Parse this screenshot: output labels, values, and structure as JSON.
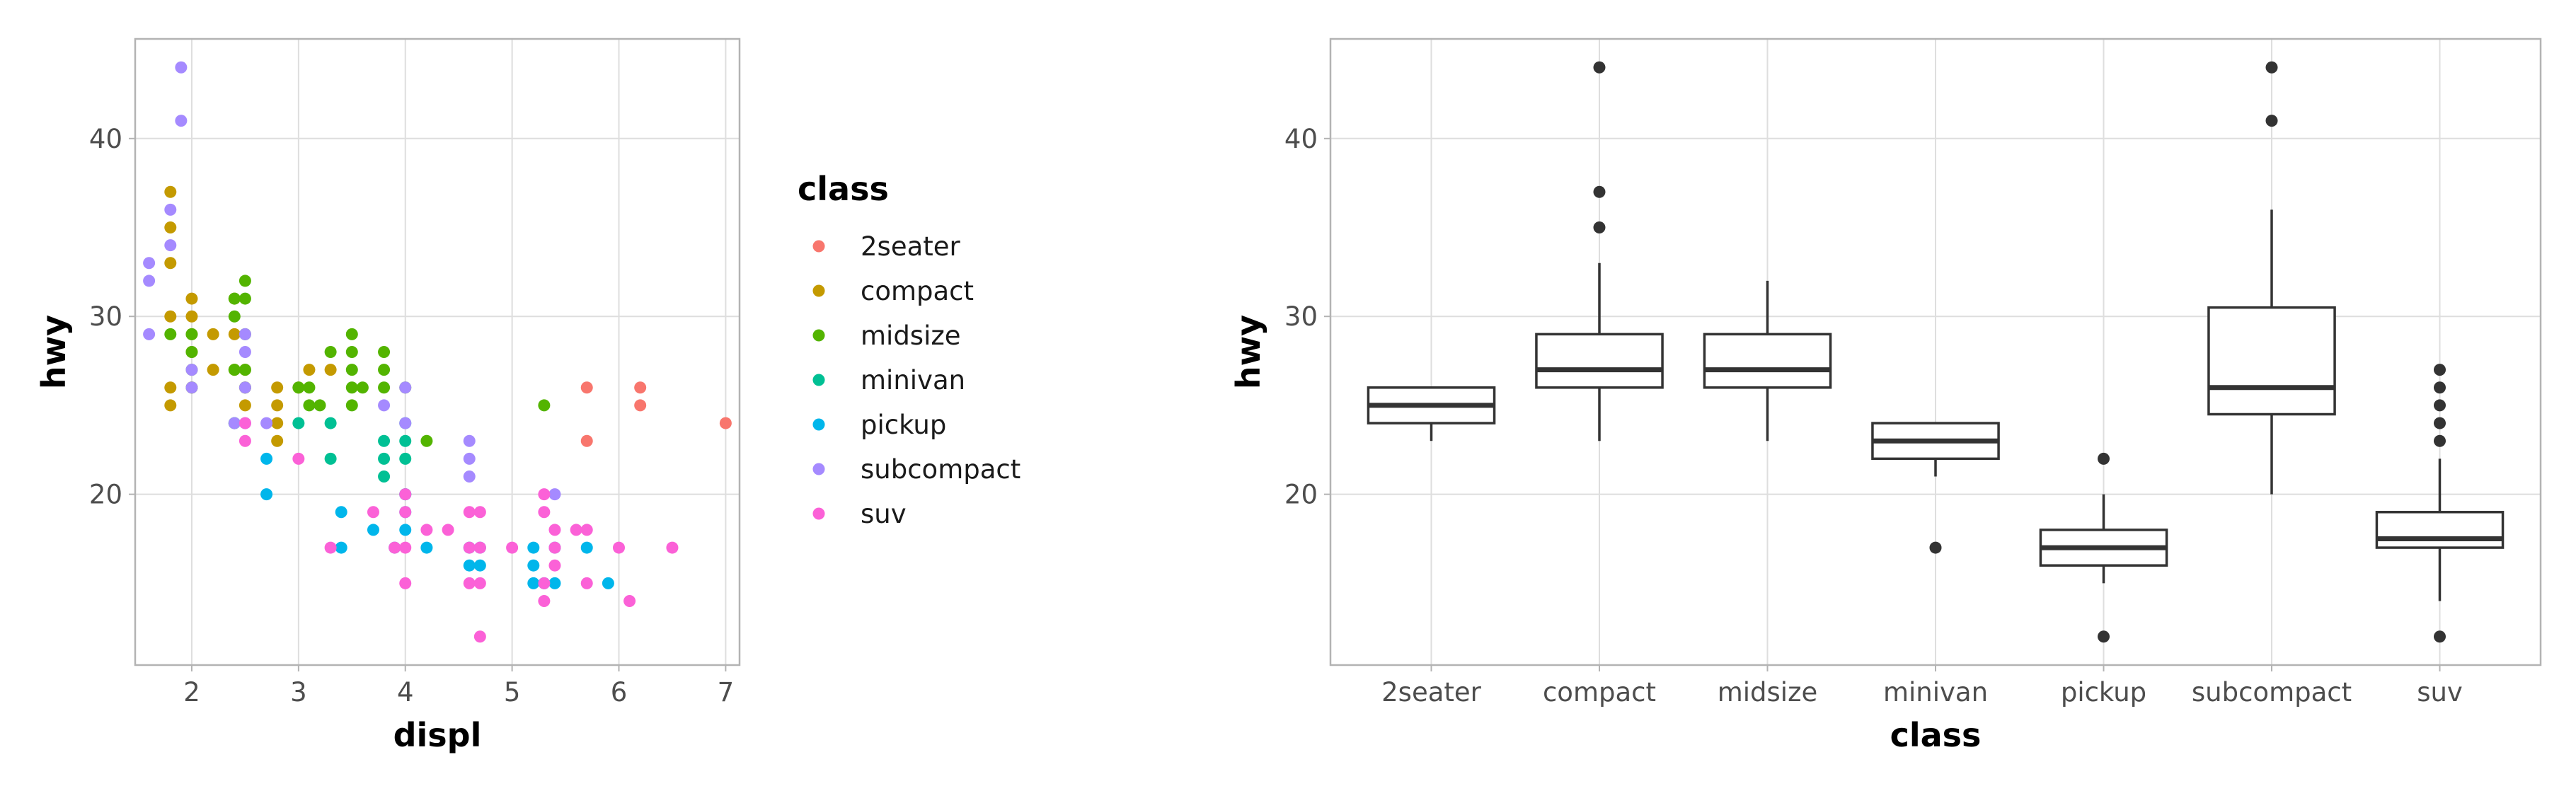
{
  "chart_data": [
    {
      "type": "scatter",
      "xlabel": "displ",
      "ylabel": "hwy",
      "xlim": [
        1.47,
        7.13
      ],
      "ylim": [
        10.4,
        45.6
      ],
      "x_ticks": [
        2,
        3,
        4,
        5,
        6,
        7
      ],
      "y_ticks": [
        20,
        30,
        40
      ],
      "grid": true,
      "legend": {
        "title": "class",
        "placement": "right",
        "entries": [
          {
            "label": "2seater",
            "color": "#F8766D"
          },
          {
            "label": "compact",
            "color": "#C49A00"
          },
          {
            "label": "midsize",
            "color": "#53B400"
          },
          {
            "label": "minivan",
            "color": "#00C094"
          },
          {
            "label": "pickup",
            "color": "#00B6EB"
          },
          {
            "label": "subcompact",
            "color": "#A58AFF"
          },
          {
            "label": "suv",
            "color": "#FB61D7"
          }
        ]
      },
      "series": [
        {
          "name": "2seater",
          "points": [
            [
              5.7,
              26
            ],
            [
              5.7,
              23
            ],
            [
              6.2,
              26
            ],
            [
              6.2,
              25
            ],
            [
              7.0,
              24
            ]
          ]
        },
        {
          "name": "compact",
          "points": [
            [
              1.8,
              37
            ],
            [
              1.8,
              35
            ],
            [
              1.8,
              33
            ],
            [
              1.8,
              30
            ],
            [
              1.8,
              26
            ],
            [
              1.8,
              25
            ],
            [
              2.0,
              31
            ],
            [
              2.0,
              30
            ],
            [
              2.0,
              29
            ],
            [
              2.0,
              28
            ],
            [
              2.0,
              26
            ],
            [
              2.2,
              29
            ],
            [
              2.2,
              27
            ],
            [
              2.4,
              31
            ],
            [
              2.4,
              29
            ],
            [
              2.4,
              27
            ],
            [
              2.5,
              27
            ],
            [
              2.5,
              26
            ],
            [
              2.5,
              25
            ],
            [
              2.8,
              26
            ],
            [
              2.8,
              25
            ],
            [
              2.8,
              24
            ],
            [
              2.8,
              23
            ],
            [
              3.0,
              26
            ],
            [
              3.1,
              27
            ],
            [
              3.3,
              27
            ]
          ]
        },
        {
          "name": "midsize",
          "points": [
            [
              1.8,
              29
            ],
            [
              2.0,
              29
            ],
            [
              2.0,
              28
            ],
            [
              2.0,
              27
            ],
            [
              2.0,
              26
            ],
            [
              2.4,
              31
            ],
            [
              2.4,
              30
            ],
            [
              2.4,
              27
            ],
            [
              2.4,
              24
            ],
            [
              2.5,
              32
            ],
            [
              2.5,
              31
            ],
            [
              2.5,
              29
            ],
            [
              2.5,
              27
            ],
            [
              2.5,
              26
            ],
            [
              3.0,
              26
            ],
            [
              3.1,
              26
            ],
            [
              3.1,
              25
            ],
            [
              3.2,
              25
            ],
            [
              3.3,
              28
            ],
            [
              3.5,
              29
            ],
            [
              3.5,
              28
            ],
            [
              3.5,
              27
            ],
            [
              3.5,
              26
            ],
            [
              3.5,
              25
            ],
            [
              3.6,
              26
            ],
            [
              3.8,
              28
            ],
            [
              3.8,
              27
            ],
            [
              3.8,
              26
            ],
            [
              4.0,
              26
            ],
            [
              4.2,
              23
            ],
            [
              5.3,
              25
            ]
          ]
        },
        {
          "name": "minivan",
          "points": [
            [
              2.4,
              24
            ],
            [
              3.0,
              24
            ],
            [
              3.3,
              24
            ],
            [
              3.3,
              22
            ],
            [
              3.8,
              23
            ],
            [
              3.8,
              22
            ],
            [
              3.8,
              21
            ],
            [
              4.0,
              24
            ],
            [
              4.0,
              23
            ],
            [
              4.0,
              22
            ],
            [
              4.0,
              20
            ]
          ]
        },
        {
          "name": "pickup",
          "points": [
            [
              2.7,
              22
            ],
            [
              2.7,
              20
            ],
            [
              3.4,
              19
            ],
            [
              3.4,
              17
            ],
            [
              3.7,
              18
            ],
            [
              3.9,
              17
            ],
            [
              4.0,
              20
            ],
            [
              4.0,
              19
            ],
            [
              4.0,
              18
            ],
            [
              4.2,
              17
            ],
            [
              4.6,
              17
            ],
            [
              4.6,
              16
            ],
            [
              4.7,
              17
            ],
            [
              4.7,
              16
            ],
            [
              5.2,
              17
            ],
            [
              5.2,
              16
            ],
            [
              5.2,
              15
            ],
            [
              5.3,
              15
            ],
            [
              5.4,
              17
            ],
            [
              5.4,
              15
            ],
            [
              5.7,
              17
            ],
            [
              5.9,
              15
            ]
          ]
        },
        {
          "name": "subcompact",
          "points": [
            [
              1.6,
              33
            ],
            [
              1.6,
              32
            ],
            [
              1.6,
              29
            ],
            [
              1.8,
              34
            ],
            [
              1.8,
              36
            ],
            [
              1.9,
              44
            ],
            [
              1.9,
              41
            ],
            [
              2.0,
              27
            ],
            [
              2.0,
              26
            ],
            [
              2.4,
              24
            ],
            [
              2.5,
              29
            ],
            [
              2.5,
              28
            ],
            [
              2.5,
              26
            ],
            [
              2.5,
              24
            ],
            [
              2.7,
              24
            ],
            [
              3.8,
              25
            ],
            [
              4.0,
              26
            ],
            [
              4.0,
              24
            ],
            [
              4.6,
              23
            ],
            [
              4.6,
              22
            ],
            [
              4.6,
              21
            ],
            [
              5.4,
              20
            ]
          ]
        },
        {
          "name": "suv",
          "points": [
            [
              2.5,
              24
            ],
            [
              2.5,
              23
            ],
            [
              3.0,
              22
            ],
            [
              3.3,
              17
            ],
            [
              3.7,
              19
            ],
            [
              3.9,
              17
            ],
            [
              4.0,
              20
            ],
            [
              4.0,
              19
            ],
            [
              4.0,
              17
            ],
            [
              4.0,
              15
            ],
            [
              4.2,
              18
            ],
            [
              4.4,
              18
            ],
            [
              4.6,
              19
            ],
            [
              4.6,
              17
            ],
            [
              4.6,
              15
            ],
            [
              4.7,
              19
            ],
            [
              4.7,
              17
            ],
            [
              4.7,
              15
            ],
            [
              4.7,
              12
            ],
            [
              5.0,
              17
            ],
            [
              5.3,
              20
            ],
            [
              5.3,
              19
            ],
            [
              5.3,
              15
            ],
            [
              5.3,
              14
            ],
            [
              5.4,
              18
            ],
            [
              5.4,
              17
            ],
            [
              5.4,
              16
            ],
            [
              5.6,
              18
            ],
            [
              5.7,
              18
            ],
            [
              5.7,
              15
            ],
            [
              6.0,
              17
            ],
            [
              6.1,
              14
            ],
            [
              6.5,
              17
            ]
          ]
        }
      ]
    },
    {
      "type": "box",
      "xlabel": "class",
      "ylabel": "hwy",
      "ylim": [
        10.4,
        45.6
      ],
      "y_ticks": [
        20,
        30,
        40
      ],
      "grid": true,
      "categories": [
        "2seater",
        "compact",
        "midsize",
        "minivan",
        "pickup",
        "subcompact",
        "suv"
      ],
      "boxes": [
        {
          "category": "2seater",
          "lower_whisker": 23,
          "q1": 24,
          "median": 25,
          "q3": 26,
          "upper_whisker": 26,
          "outliers": []
        },
        {
          "category": "compact",
          "lower_whisker": 23,
          "q1": 26,
          "median": 27,
          "q3": 29,
          "upper_whisker": 33,
          "outliers": [
            35,
            37,
            44
          ]
        },
        {
          "category": "midsize",
          "lower_whisker": 23,
          "q1": 26,
          "median": 27,
          "q3": 29,
          "upper_whisker": 32,
          "outliers": []
        },
        {
          "category": "minivan",
          "lower_whisker": 21,
          "q1": 22,
          "median": 23,
          "q3": 24,
          "upper_whisker": 24,
          "outliers": [
            17
          ]
        },
        {
          "category": "pickup",
          "lower_whisker": 15,
          "q1": 16,
          "median": 17,
          "q3": 18,
          "upper_whisker": 20,
          "outliers": [
            12,
            22
          ]
        },
        {
          "category": "subcompact",
          "lower_whisker": 20,
          "q1": 24.5,
          "median": 26,
          "q3": 30.5,
          "upper_whisker": 36,
          "outliers": [
            41,
            44
          ]
        },
        {
          "category": "suv",
          "lower_whisker": 14,
          "q1": 17,
          "median": 17.5,
          "q3": 19,
          "upper_whisker": 22,
          "outliers": [
            12,
            23,
            24,
            25,
            26,
            27
          ]
        }
      ]
    }
  ]
}
